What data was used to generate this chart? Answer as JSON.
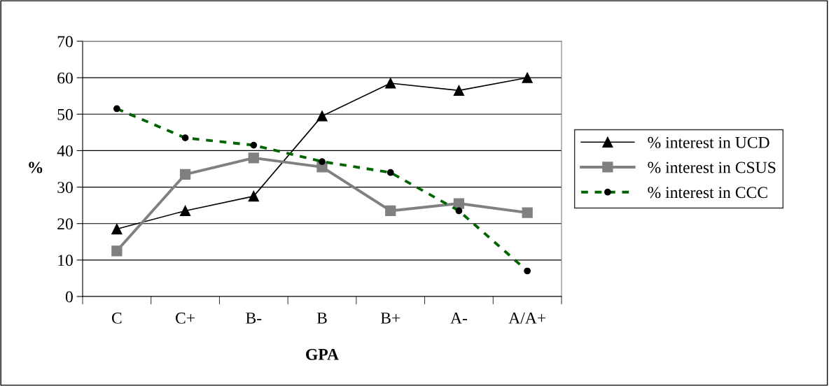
{
  "chart_data": {
    "type": "line",
    "xlabel": "GPA",
    "ylabel": "%",
    "categories": [
      "C",
      "C+",
      "B-",
      "B",
      "B+",
      "A-",
      "A/A+"
    ],
    "series": [
      {
        "name": "% interest in UCD",
        "color": "#000000",
        "values": [
          18.5,
          23.5,
          27.5,
          49.5,
          58.5,
          56.5,
          60
        ],
        "marker": "triangle",
        "line_style": "solid"
      },
      {
        "name": "% interest in CSUS",
        "color": "#808080",
        "values": [
          12.5,
          33.5,
          38,
          35.5,
          23.5,
          25.5,
          23
        ],
        "marker": "square",
        "line_style": "solid"
      },
      {
        "name": "% interest in CCC",
        "color": "#006400",
        "values": [
          51.5,
          43.5,
          41.5,
          37,
          34,
          23.5,
          7
        ],
        "marker": "circle",
        "line_style": "dashed"
      }
    ],
    "ylim": [
      0,
      70
    ],
    "yticks": [
      0,
      10,
      20,
      30,
      40,
      50,
      60,
      70
    ],
    "grid": "y",
    "legend": "right"
  }
}
